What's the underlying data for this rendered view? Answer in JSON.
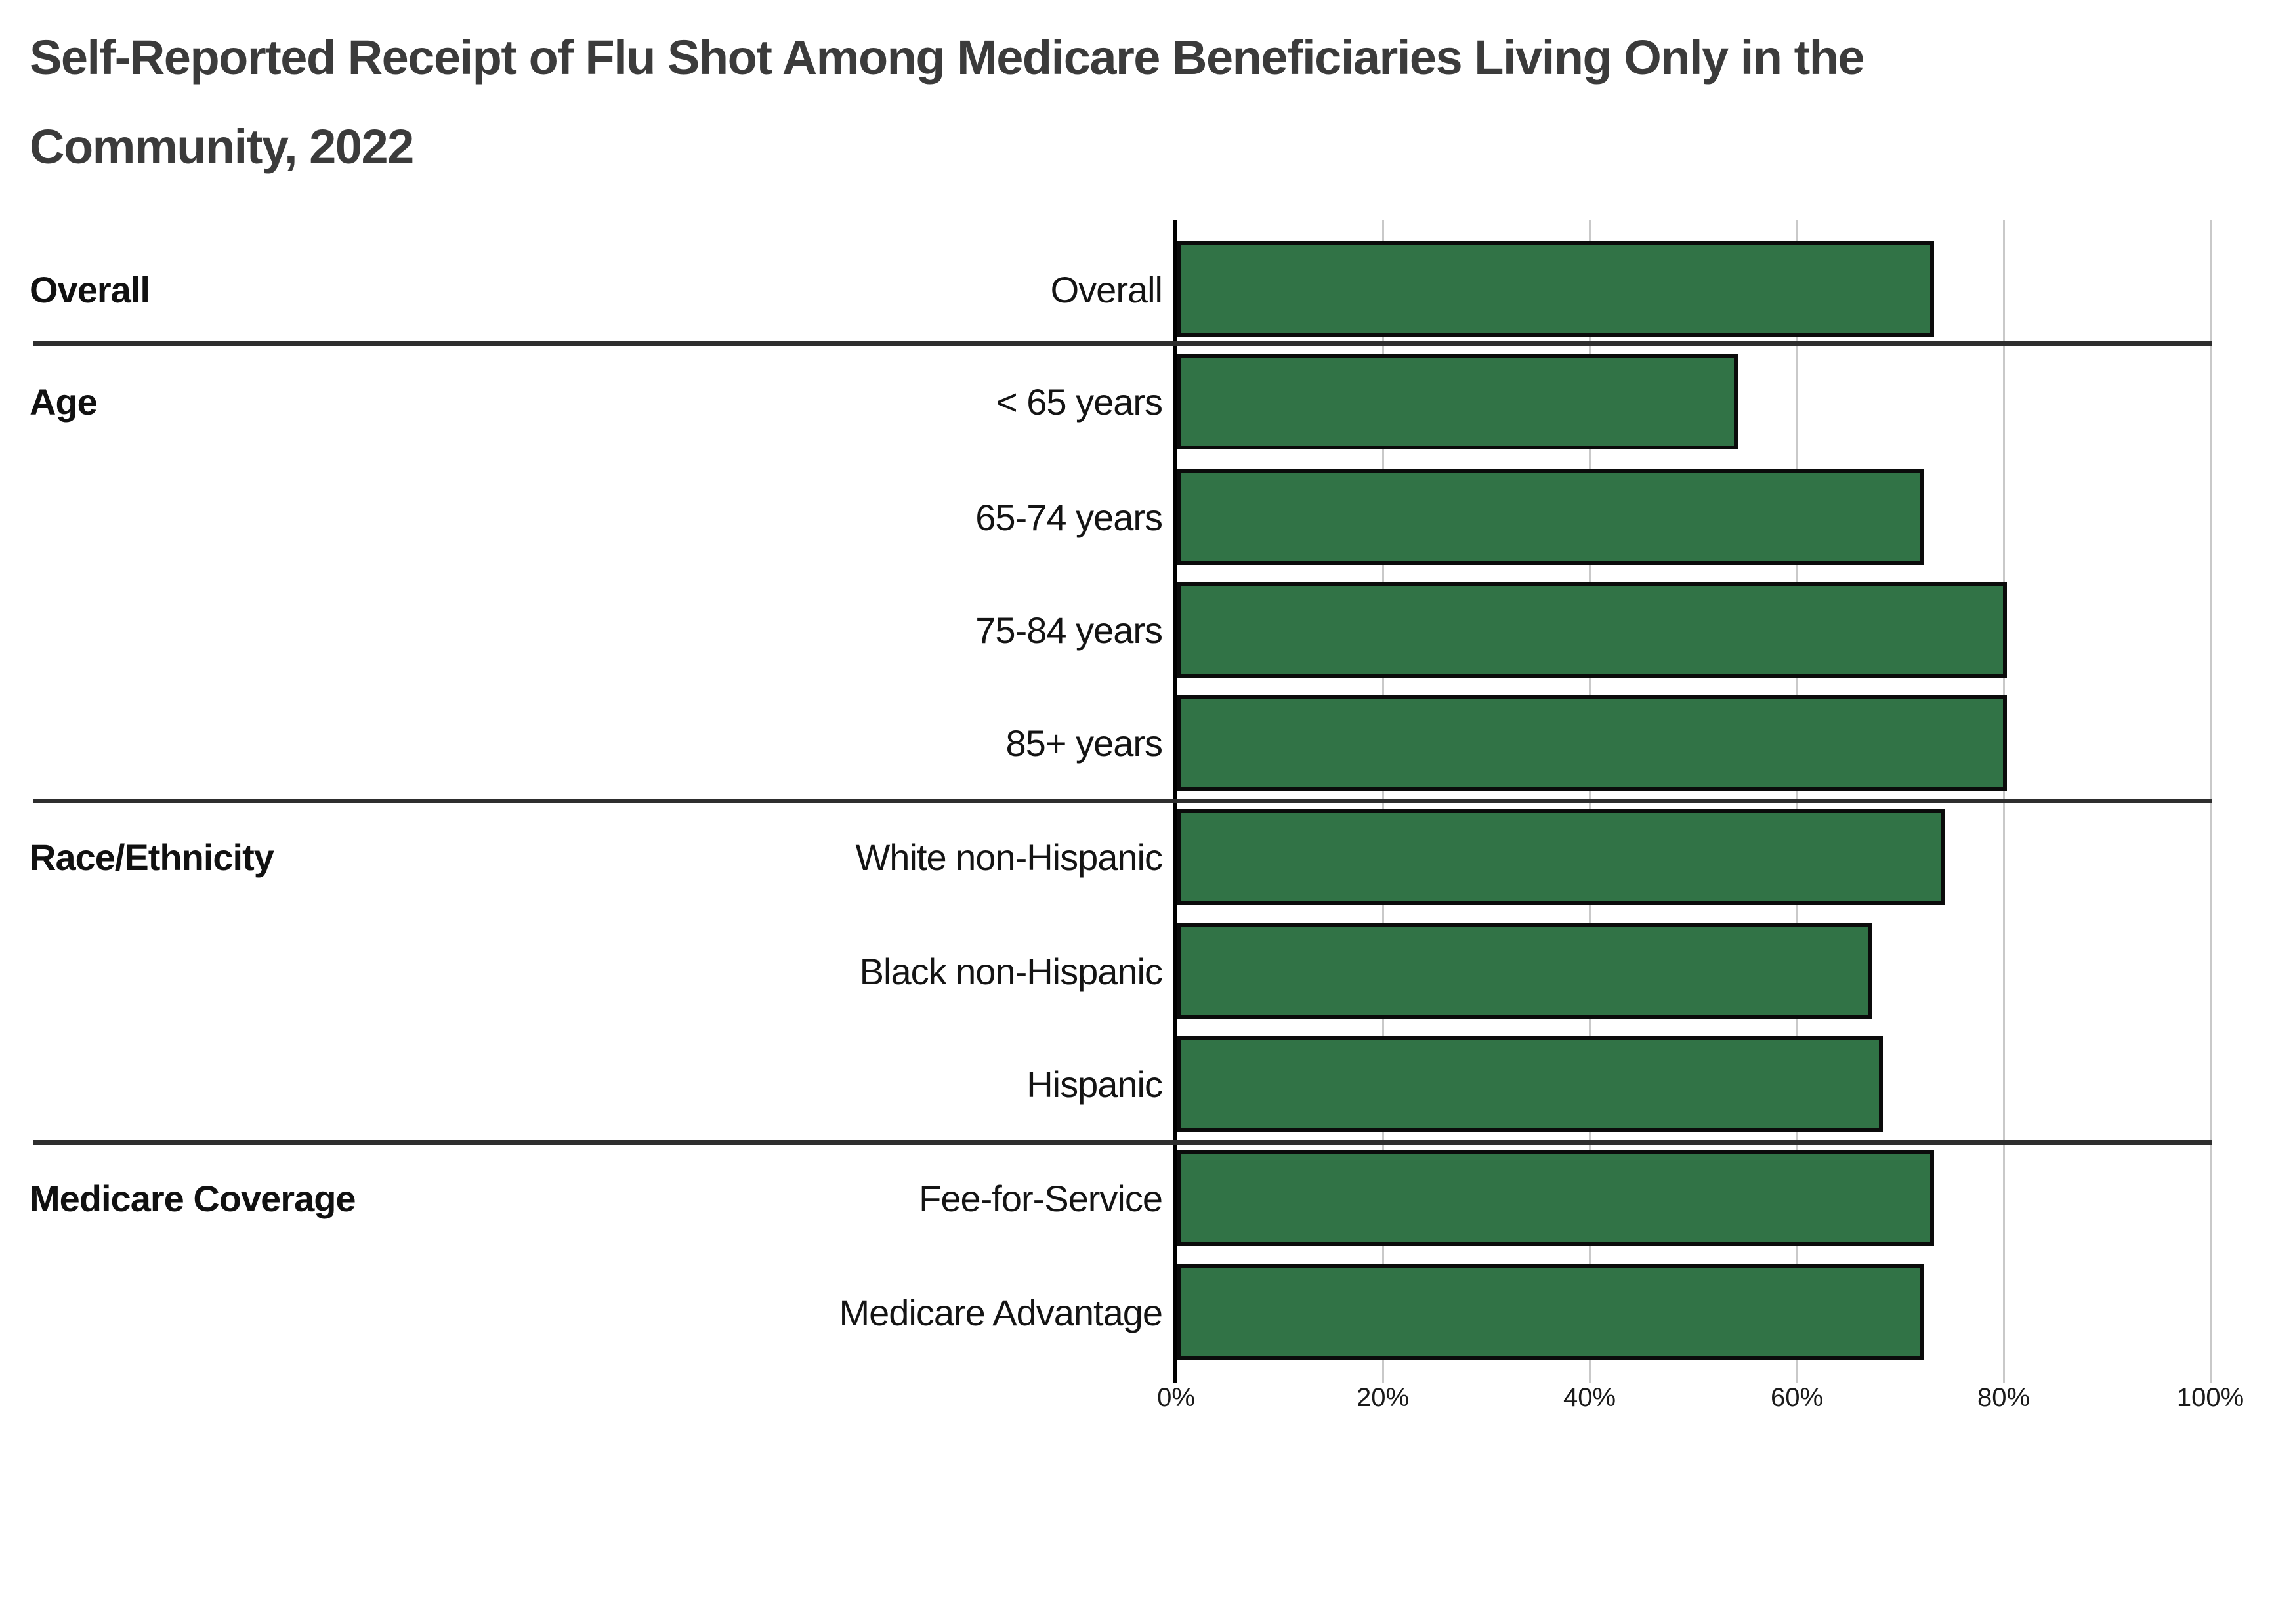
{
  "header": {
    "title_lines": [
      "Self-Reported Receipt of Flu Shot Among Medicare Beneficiaries Living Only in the",
      "Community, 2022"
    ]
  },
  "chart_data": {
    "type": "bar",
    "orientation": "horizontal",
    "title": "Self-Reported Receipt of Flu Shot Among Medicare Beneficiaries Living Only in the Community, 2022",
    "unit": "percent",
    "xlim": [
      0,
      100
    ],
    "x_tick_values": [
      0,
      20,
      40,
      60,
      80,
      100
    ],
    "x_tick_labels": [
      "0%",
      "20%",
      "40%",
      "60%",
      "80%",
      "100%"
    ],
    "grid": "vertical-gridlines-on",
    "legend": "none",
    "bar_color": "#317346",
    "bar_border_color": "#0b0b0b",
    "gridline_color": "#c9c9c9",
    "separator_color": "#2e2e2e",
    "title_color": "#3b3b3b",
    "groups": [
      {
        "name": "Overall",
        "rows": [
          {
            "label": "Overall",
            "value": 73
          }
        ]
      },
      {
        "name": "Age",
        "rows": [
          {
            "label": "< 65 years",
            "value": 54
          },
          {
            "label": "65-74 years",
            "value": 72
          },
          {
            "label": "75-84 years",
            "value": 80
          },
          {
            "label": "85+ years",
            "value": 80
          }
        ]
      },
      {
        "name": "Race/Ethnicity",
        "rows": [
          {
            "label": "White non-Hispanic",
            "value": 74
          },
          {
            "label": "Black non-Hispanic",
            "value": 67
          },
          {
            "label": "Hispanic",
            "value": 68
          }
        ]
      },
      {
        "name": "Medicare Coverage",
        "rows": [
          {
            "label": "Fee-for-Service",
            "value": 73
          },
          {
            "label": "Medicare Advantage",
            "value": 72
          }
        ]
      }
    ]
  }
}
